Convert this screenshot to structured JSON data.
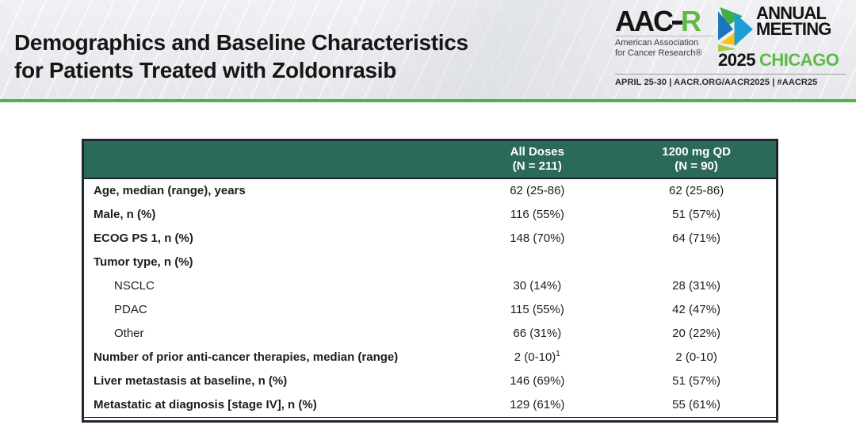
{
  "slide": {
    "title_line1": "Demographics and Baseline Characteristics",
    "title_line2": "for Patients Treated with Zoldonrasib"
  },
  "logo": {
    "aacr_prefix": "AAC",
    "aacr_suffix": "R",
    "org_line1": "American Association",
    "org_line2": "for Cancer Research®",
    "meeting_line1": "ANNUAL",
    "meeting_line2": "MEETING",
    "year": "2025",
    "city": "CHICAGO",
    "footer": "APRIL 25-30  |  AACR.ORG/AACR2025  |  #AACR25",
    "mark_icon": "aacr-arrow-mark"
  },
  "colors": {
    "divider_green": "#4bb648",
    "table_header_teal": "#2b695b",
    "brand_green": "#5eb946",
    "arrow_blue": "#1b75bc",
    "arrow_green": "#3fae49",
    "arrow_lime": "#a6ce42",
    "arrow_yellow": "#fdc010",
    "arrow_cyan": "#1d9fd6"
  },
  "table": {
    "col_headers": [
      {
        "line1": "All Doses",
        "line2": "(N = 211)"
      },
      {
        "line1": "1200 mg QD",
        "line2": "(N = 90)"
      }
    ],
    "rows": [
      {
        "label": "Age, median (range), years",
        "bold": true,
        "indent": false,
        "all_doses": "62 (25-86)",
        "qd1200": "62 (25-86)"
      },
      {
        "label": "Male, n (%)",
        "bold": true,
        "indent": false,
        "all_doses": "116 (55%)",
        "qd1200": "51 (57%)"
      },
      {
        "label": "ECOG PS 1, n (%)",
        "bold": true,
        "indent": false,
        "all_doses": "148 (70%)",
        "qd1200": "64 (71%)"
      },
      {
        "label": "Tumor type, n (%)",
        "bold": true,
        "indent": false,
        "all_doses": "",
        "qd1200": ""
      },
      {
        "label": "NSCLC",
        "bold": false,
        "indent": true,
        "all_doses": "30 (14%)",
        "qd1200": "28 (31%)"
      },
      {
        "label": "PDAC",
        "bold": false,
        "indent": true,
        "all_doses": "115 (55%)",
        "qd1200": "42 (47%)"
      },
      {
        "label": "Other",
        "bold": false,
        "indent": true,
        "all_doses": "66 (31%)",
        "qd1200": "20 (22%)"
      },
      {
        "label": "Number of prior anti-cancer therapies, median (range)",
        "bold": true,
        "indent": false,
        "all_doses": "2 (0-10)",
        "all_doses_sup": "1",
        "qd1200": "2 (0-10)"
      },
      {
        "label": "Liver metastasis at baseline, n (%)",
        "bold": true,
        "indent": false,
        "all_doses": "146 (69%)",
        "qd1200": "51 (57%)"
      },
      {
        "label": "Metastatic at diagnosis [stage IV], n (%)",
        "bold": true,
        "indent": false,
        "all_doses": "129 (61%)",
        "qd1200": "55 (61%)"
      }
    ]
  }
}
